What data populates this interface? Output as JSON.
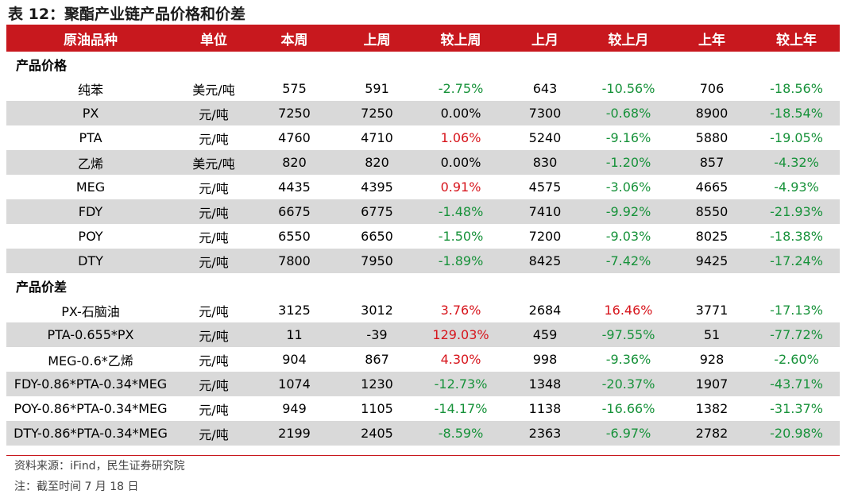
{
  "title": "表 12：聚酯产业链产品价格和价差",
  "headers": [
    "原油品种",
    "单位",
    "本周",
    "上周",
    "较上周",
    "上月",
    "较上月",
    "上年",
    "较上年"
  ],
  "sections": [
    {
      "label": "产品价格",
      "rows": [
        {
          "name": "纯苯",
          "unit": "美元/吨",
          "cur": "575",
          "lw": "591",
          "dw": "-2.75%",
          "lm": "643",
          "dm": "-10.56%",
          "ly": "706",
          "dy": "-18.56%"
        },
        {
          "name": "PX",
          "unit": "元/吨",
          "cur": "7250",
          "lw": "7250",
          "dw": "0.00%",
          "lm": "7300",
          "dm": "-0.68%",
          "ly": "8900",
          "dy": "-18.54%"
        },
        {
          "name": "PTA",
          "unit": "元/吨",
          "cur": "4760",
          "lw": "4710",
          "dw": "1.06%",
          "lm": "5240",
          "dm": "-9.16%",
          "ly": "5880",
          "dy": "-19.05%"
        },
        {
          "name": "乙烯",
          "unit": "美元/吨",
          "cur": "820",
          "lw": "820",
          "dw": "0.00%",
          "lm": "830",
          "dm": "-1.20%",
          "ly": "857",
          "dy": "-4.32%"
        },
        {
          "name": "MEG",
          "unit": "元/吨",
          "cur": "4435",
          "lw": "4395",
          "dw": "0.91%",
          "lm": "4575",
          "dm": "-3.06%",
          "ly": "4665",
          "dy": "-4.93%"
        },
        {
          "name": "FDY",
          "unit": "元/吨",
          "cur": "6675",
          "lw": "6775",
          "dw": "-1.48%",
          "lm": "7410",
          "dm": "-9.92%",
          "ly": "8550",
          "dy": "-21.93%"
        },
        {
          "name": "POY",
          "unit": "元/吨",
          "cur": "6550",
          "lw": "6650",
          "dw": "-1.50%",
          "lm": "7200",
          "dm": "-9.03%",
          "ly": "8025",
          "dy": "-18.38%"
        },
        {
          "name": "DTY",
          "unit": "元/吨",
          "cur": "7800",
          "lw": "7950",
          "dw": "-1.89%",
          "lm": "8425",
          "dm": "-7.42%",
          "ly": "9425",
          "dy": "-17.24%"
        }
      ]
    },
    {
      "label": "产品价差",
      "rows": [
        {
          "name": "PX-石脑油",
          "unit": "元/吨",
          "cur": "3125",
          "lw": "3012",
          "dw": "3.76%",
          "lm": "2684",
          "dm": "16.46%",
          "ly": "3771",
          "dy": "-17.13%"
        },
        {
          "name": "PTA-0.655*PX",
          "unit": "元/吨",
          "cur": "11",
          "lw": "-39",
          "dw": "129.03%",
          "lm": "459",
          "dm": "-97.55%",
          "ly": "51",
          "dy": "-77.72%"
        },
        {
          "name": "MEG-0.6*乙烯",
          "unit": "元/吨",
          "cur": "904",
          "lw": "867",
          "dw": "4.30%",
          "lm": "998",
          "dm": "-9.36%",
          "ly": "928",
          "dy": "-2.60%"
        },
        {
          "name": "FDY-0.86*PTA-0.34*MEG",
          "unit": "元/吨",
          "cur": "1074",
          "lw": "1230",
          "dw": "-12.73%",
          "lm": "1348",
          "dm": "-20.37%",
          "ly": "1907",
          "dy": "-43.71%"
        },
        {
          "name": "POY-0.86*PTA-0.34*MEG",
          "unit": "元/吨",
          "cur": "949",
          "lw": "1105",
          "dw": "-14.17%",
          "lm": "1138",
          "dm": "-16.66%",
          "ly": "1382",
          "dy": "-31.37%"
        },
        {
          "name": "DTY-0.86*PTA-0.34*MEG",
          "unit": "元/吨",
          "cur": "2199",
          "lw": "2405",
          "dw": "-8.59%",
          "lm": "2363",
          "dm": "-6.97%",
          "ly": "2782",
          "dy": "-20.98%"
        }
      ]
    }
  ],
  "source": "资料来源：iFind，民生证券研究院",
  "note": "注：截至时间 7 月 18 日",
  "colors": {
    "header_bg": "#c8181e",
    "stripe": "#d9d9d9",
    "negative": "#17923a",
    "positive": "#d7151c"
  }
}
